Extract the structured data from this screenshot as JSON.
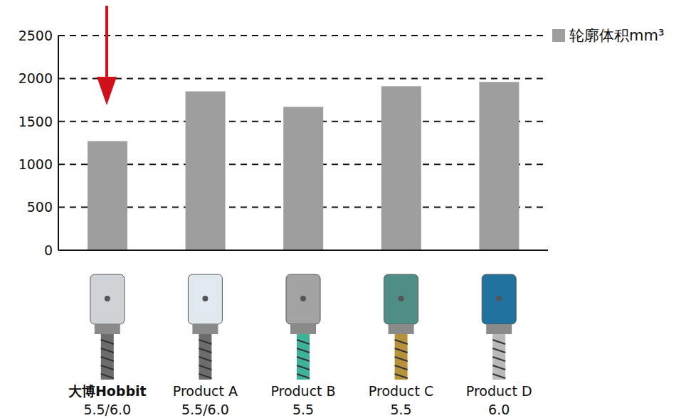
{
  "chart_data": {
    "type": "bar",
    "categories": [
      "大博Hobbit 5.5/6.0",
      "Product A 5.5/6.0",
      "Product B 5.5",
      "Product C 5.5",
      "Product D 6.0"
    ],
    "series": [
      {
        "name": "轮廓体积mm³",
        "color": "#9e9e9e",
        "values": [
          1270,
          1850,
          1670,
          1910,
          1960
        ]
      }
    ],
    "ylim": [
      0,
      2500
    ],
    "yticks": [
      0,
      500,
      1000,
      1500,
      2000,
      2500
    ],
    "grid": true,
    "legend": "top-right"
  }
}
